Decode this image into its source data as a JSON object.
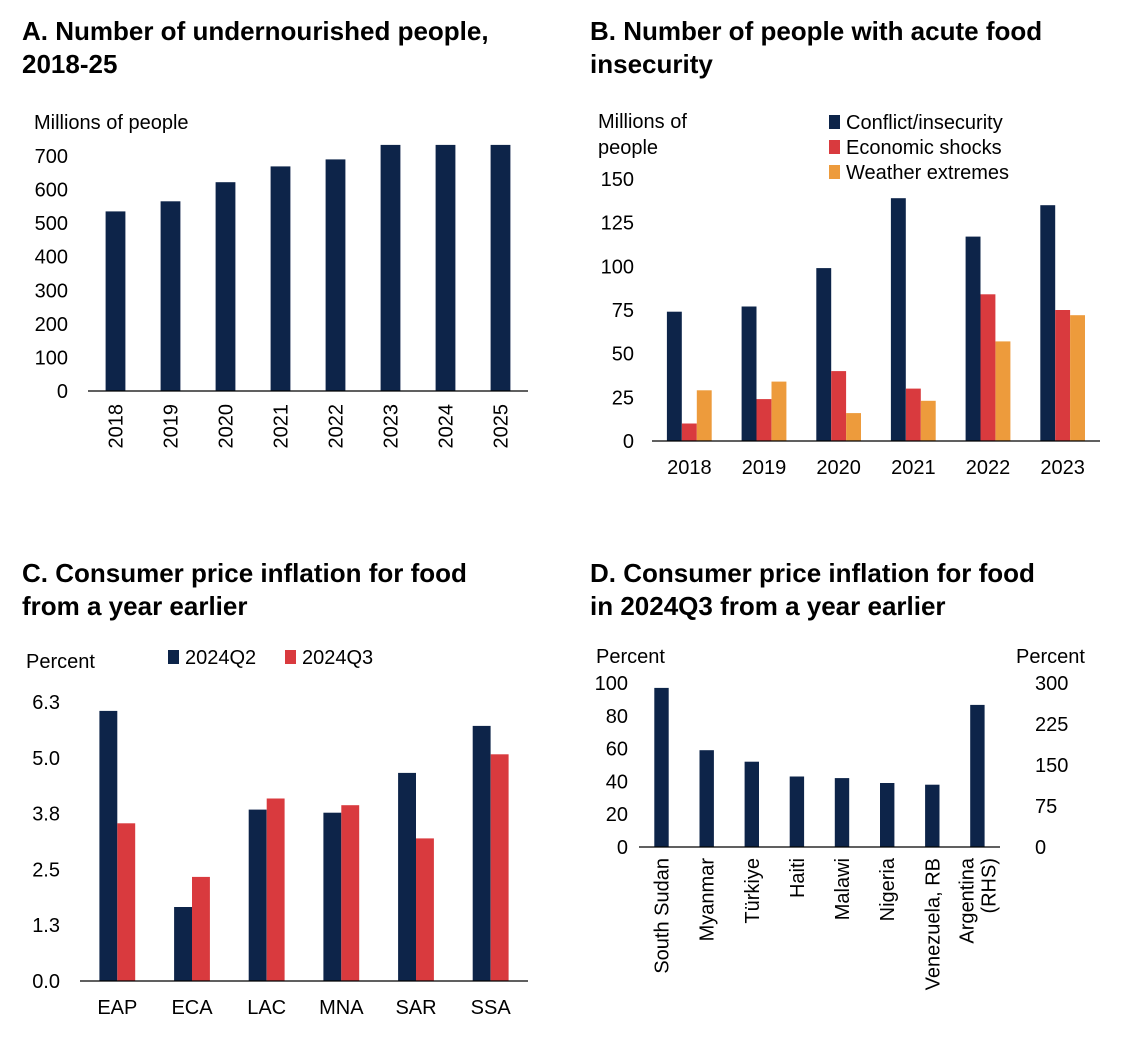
{
  "colors": {
    "navy": "#0d2449",
    "red": "#d93a3e",
    "orange": "#ed9b3c",
    "axis": "#000000"
  },
  "panels": {
    "a": {
      "title_line1": "A. Number of undernourished people,",
      "title_line2": "2018-25"
    },
    "b": {
      "title_line1": "B. Number of people with acute food",
      "title_line2": "insecurity"
    },
    "c": {
      "title_line1": "C. Consumer price inflation for food",
      "title_line2": "from a year earlier"
    },
    "d": {
      "title_line1": "D. Consumer price inflation for food",
      "title_line2": "in 2024Q3 from a year earlier"
    }
  },
  "chart_data": [
    {
      "id": "a",
      "type": "bar",
      "title": "A. Number of undernourished people, 2018-25",
      "ylabel": "Millions of people",
      "categories": [
        "2018",
        "2019",
        "2020",
        "2021",
        "2022",
        "2023",
        "2024",
        "2025"
      ],
      "series": [
        {
          "values": [
            535,
            565,
            622,
            669,
            690,
            733,
            733,
            733
          ]
        }
      ],
      "ylim": [
        0,
        700
      ],
      "yticks": [
        "0",
        "100",
        "200",
        "300",
        "400",
        "500",
        "600",
        "700"
      ],
      "legend": "none",
      "grid": false
    },
    {
      "id": "b",
      "type": "bar",
      "title": "B. Number of people with acute food insecurity",
      "ylabel": "Millions of people",
      "categories": [
        "2018",
        "2019",
        "2020",
        "2021",
        "2022",
        "2023"
      ],
      "series": [
        {
          "name": "Conflict/insecurity",
          "values": [
            74,
            77,
            99,
            139,
            117,
            135
          ]
        },
        {
          "name": "Economic shocks",
          "values": [
            10,
            24,
            40,
            30,
            84,
            75
          ]
        },
        {
          "name": "Weather extremes",
          "values": [
            29,
            34,
            16,
            23,
            57,
            72
          ]
        }
      ],
      "ylim": [
        0,
        150
      ],
      "yticks": [
        "0",
        "25",
        "50",
        "75",
        "100",
        "125",
        "150"
      ],
      "legend": "top-right",
      "grid": false
    },
    {
      "id": "c",
      "type": "bar",
      "title": "C. Consumer price inflation for food from a year earlier",
      "ylabel": "Percent",
      "categories": [
        "EAP",
        "ECA",
        "LAC",
        "MNA",
        "SAR",
        "SSA"
      ],
      "series": [
        {
          "name": "2024Q2",
          "values": [
            6.1,
            1.67,
            3.87,
            3.8,
            4.7,
            5.76
          ]
        },
        {
          "name": "2024Q3",
          "values": [
            3.56,
            2.35,
            4.12,
            3.97,
            3.22,
            5.12
          ]
        }
      ],
      "ylim": [
        0,
        6.3
      ],
      "yticks": [
        "0.0",
        "1.3",
        "2.5",
        "3.8",
        "5.0",
        "6.3"
      ],
      "legend": "top",
      "grid": false
    },
    {
      "id": "d",
      "type": "bar",
      "title": "D. Consumer price inflation for food in 2024Q3 from a year earlier",
      "ylabel": "Percent",
      "ylabel_right": "Percent",
      "categories": [
        "South Sudan",
        "Myanmar",
        "Türkiye",
        "Haiti",
        "Malawi",
        "Nigeria",
        "Venezuela, RB",
        "Argentina\n(RHS)"
      ],
      "series": [
        {
          "values": [
            97,
            59,
            52,
            43,
            42,
            39,
            38,
            260
          ]
        }
      ],
      "right_axis_categories": [
        "Argentina\n(RHS)"
      ],
      "ylim": [
        0,
        100
      ],
      "ylim_right": [
        0,
        300
      ],
      "yticks": [
        "0",
        "20",
        "40",
        "60",
        "80",
        "100"
      ],
      "yticks_right": [
        "0",
        "75",
        "150",
        "225",
        "300"
      ],
      "legend": "none",
      "grid": false
    }
  ]
}
